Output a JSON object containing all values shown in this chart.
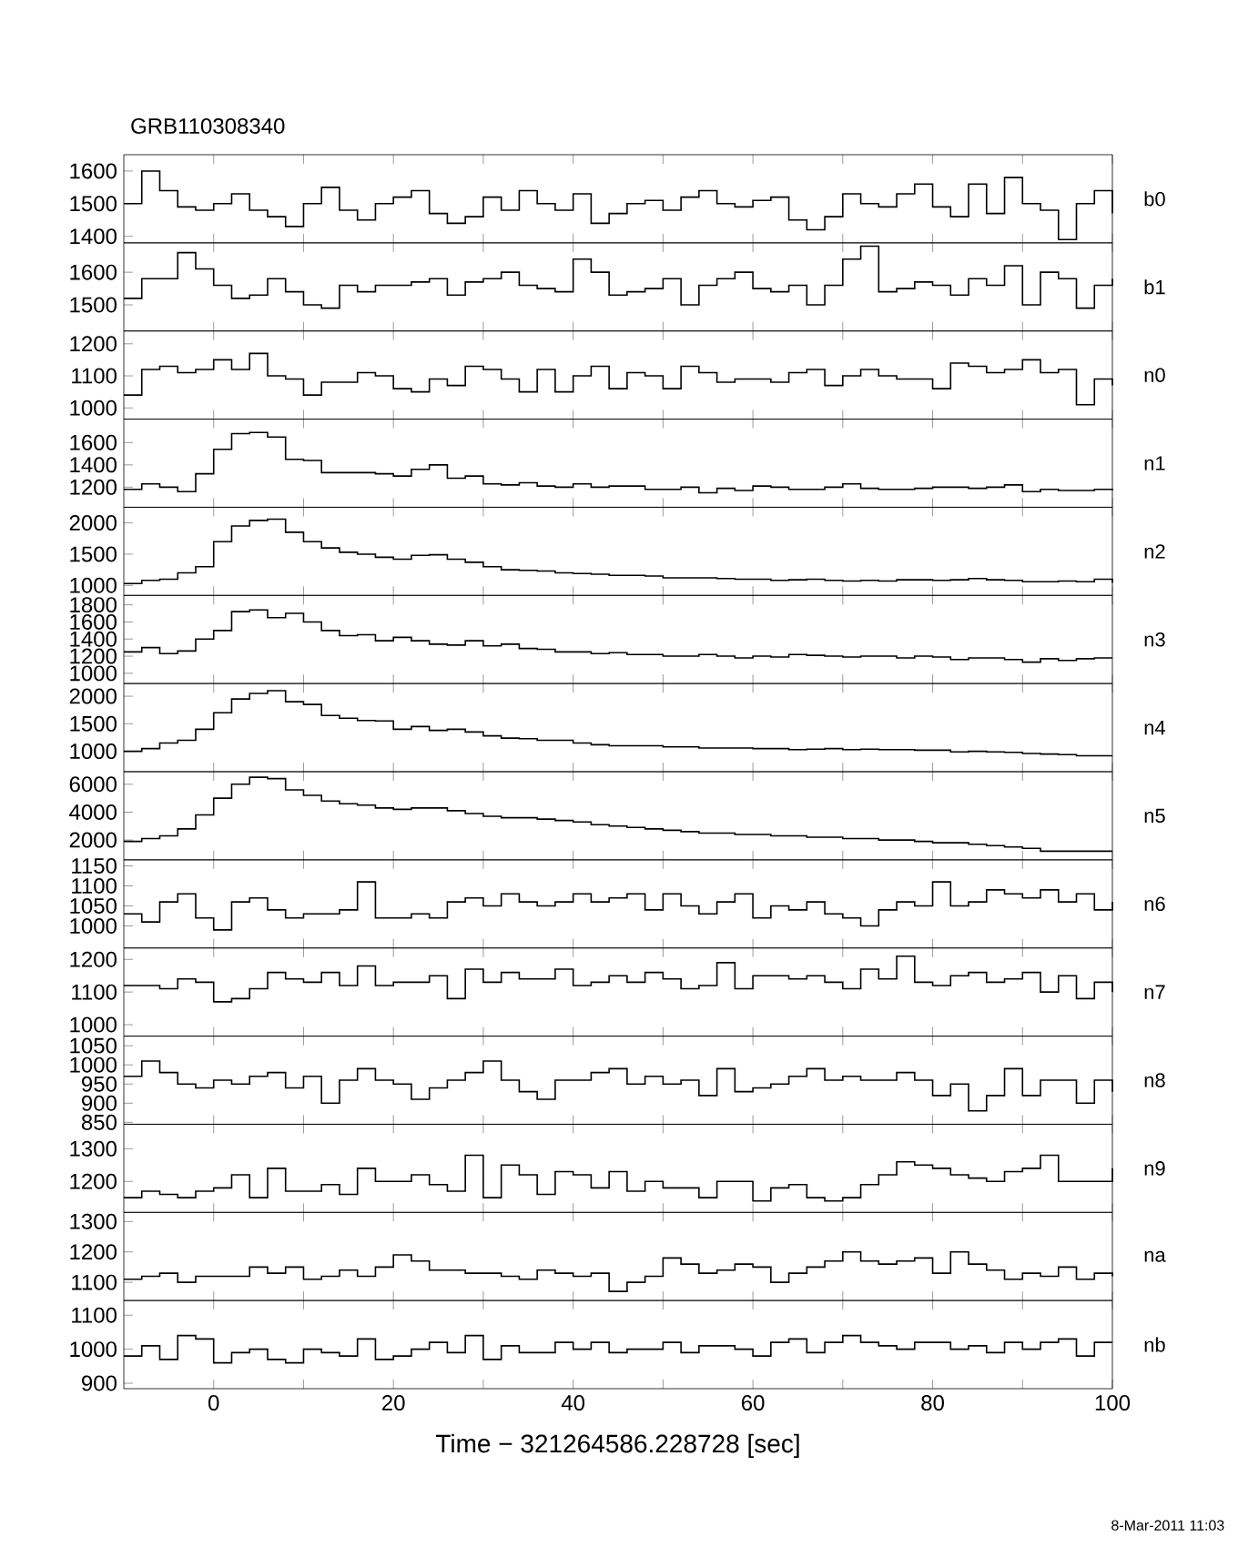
{
  "chart_data": [
    {
      "type": "step",
      "title": "GRB110308340",
      "annotations": [
        "b0"
      ],
      "color": "#000000",
      "xlim": [
        -10,
        100
      ],
      "xticks": [
        0,
        {
          "value": 10,
          "label": null
        },
        20,
        {
          "value": 30,
          "label": null
        },
        40,
        {
          "value": 50,
          "label": null
        },
        60,
        {
          "value": 70,
          "label": null
        },
        80,
        {
          "value": 90,
          "label": null
        },
        100
      ],
      "tick_labels": "y",
      "ylim": [
        1380,
        1650
      ],
      "yticks": [
        1400,
        1500,
        1600
      ],
      "x": [
        -10,
        -8,
        -6,
        -4,
        -2,
        0,
        2,
        4,
        6,
        8,
        10,
        12,
        14,
        16,
        18,
        20,
        22,
        24,
        26,
        28,
        30,
        32,
        34,
        36,
        38,
        40,
        42,
        44,
        46,
        48,
        50,
        52,
        54,
        56,
        58,
        60,
        62,
        64,
        66,
        68,
        70,
        72,
        74,
        76,
        78,
        80,
        82,
        84,
        86,
        88,
        90,
        92,
        94,
        96,
        98,
        100
      ],
      "values": [
        1500,
        1600,
        1540,
        1490,
        1480,
        1500,
        1530,
        1480,
        1460,
        1430,
        1500,
        1550,
        1480,
        1450,
        1500,
        1520,
        1540,
        1470,
        1440,
        1460,
        1520,
        1480,
        1540,
        1500,
        1480,
        1530,
        1440,
        1470,
        1500,
        1510,
        1480,
        1520,
        1540,
        1500,
        1490,
        1510,
        1520,
        1450,
        1420,
        1460,
        1530,
        1500,
        1490,
        1530,
        1560,
        1490,
        1460,
        1560,
        1470,
        1580,
        1500,
        1480,
        1390,
        1500,
        1540,
        1470
      ]
    },
    {
      "type": "step",
      "annotations": [
        "b1"
      ],
      "color": "#000000",
      "xlim": [
        -10,
        100
      ],
      "xticks": [
        0,
        {
          "value": 10,
          "label": null
        },
        20,
        {
          "value": 30,
          "label": null
        },
        40,
        {
          "value": 50,
          "label": null
        },
        60,
        {
          "value": 70,
          "label": null
        },
        80,
        {
          "value": 90,
          "label": null
        },
        100
      ],
      "tick_labels": "y",
      "ylim": [
        1420,
        1690
      ],
      "yticks": [
        1500,
        1600
      ],
      "x": [
        -10,
        -8,
        -6,
        -4,
        -2,
        0,
        2,
        4,
        6,
        8,
        10,
        12,
        14,
        16,
        18,
        20,
        22,
        24,
        26,
        28,
        30,
        32,
        34,
        36,
        38,
        40,
        42,
        44,
        46,
        48,
        50,
        52,
        54,
        56,
        58,
        60,
        62,
        64,
        66,
        68,
        70,
        72,
        74,
        76,
        78,
        80,
        82,
        84,
        86,
        88,
        90,
        92,
        94,
        96,
        98,
        100
      ],
      "values": [
        1520,
        1580,
        1580,
        1660,
        1610,
        1560,
        1520,
        1530,
        1580,
        1540,
        1500,
        1490,
        1560,
        1540,
        1560,
        1560,
        1570,
        1580,
        1530,
        1570,
        1580,
        1600,
        1560,
        1550,
        1540,
        1640,
        1600,
        1530,
        1540,
        1550,
        1580,
        1500,
        1560,
        1580,
        1600,
        1550,
        1540,
        1560,
        1500,
        1560,
        1640,
        1680,
        1540,
        1550,
        1570,
        1560,
        1530,
        1580,
        1560,
        1620,
        1500,
        1600,
        1580,
        1490,
        1560,
        1580
      ]
    },
    {
      "type": "step",
      "annotations": [
        "n0"
      ],
      "color": "#000000",
      "xlim": [
        -10,
        100
      ],
      "xticks": [
        0,
        {
          "value": 10,
          "label": null
        },
        20,
        {
          "value": 30,
          "label": null
        },
        40,
        {
          "value": 50,
          "label": null
        },
        60,
        {
          "value": 70,
          "label": null
        },
        80,
        {
          "value": 90,
          "label": null
        },
        100
      ],
      "tick_labels": "y",
      "ylim": [
        965,
        1240
      ],
      "yticks": [
        1000,
        1100,
        1200
      ],
      "x": [
        -10,
        -8,
        -6,
        -4,
        -2,
        0,
        2,
        4,
        6,
        8,
        10,
        12,
        14,
        16,
        18,
        20,
        22,
        24,
        26,
        28,
        30,
        32,
        34,
        36,
        38,
        40,
        42,
        44,
        46,
        48,
        50,
        52,
        54,
        56,
        58,
        60,
        62,
        64,
        66,
        68,
        70,
        72,
        74,
        76,
        78,
        80,
        82,
        84,
        86,
        88,
        90,
        92,
        94,
        96,
        98,
        100
      ],
      "values": [
        1040,
        1120,
        1130,
        1110,
        1120,
        1150,
        1120,
        1170,
        1100,
        1090,
        1040,
        1080,
        1080,
        1110,
        1100,
        1060,
        1050,
        1090,
        1070,
        1130,
        1120,
        1090,
        1050,
        1120,
        1050,
        1100,
        1130,
        1060,
        1110,
        1100,
        1060,
        1130,
        1110,
        1080,
        1090,
        1090,
        1080,
        1110,
        1120,
        1070,
        1100,
        1120,
        1100,
        1090,
        1090,
        1060,
        1140,
        1130,
        1110,
        1120,
        1150,
        1110,
        1120,
        1010,
        1090,
        1070
      ]
    },
    {
      "type": "step",
      "annotations": [
        "n1"
      ],
      "color": "#000000",
      "xlim": [
        -10,
        100
      ],
      "xticks": [
        0,
        {
          "value": 10,
          "label": null
        },
        20,
        {
          "value": 30,
          "label": null
        },
        40,
        {
          "value": 50,
          "label": null
        },
        60,
        {
          "value": 70,
          "label": null
        },
        80,
        {
          "value": 90,
          "label": null
        },
        100
      ],
      "tick_labels": "y",
      "ylim": [
        1020,
        1810
      ],
      "yticks": [
        1200,
        1400,
        1600
      ],
      "x": [
        -10,
        -8,
        -6,
        -4,
        -2,
        0,
        2,
        4,
        6,
        8,
        10,
        12,
        14,
        16,
        18,
        20,
        22,
        24,
        26,
        28,
        30,
        32,
        34,
        36,
        38,
        40,
        42,
        44,
        46,
        48,
        50,
        52,
        54,
        56,
        58,
        60,
        62,
        64,
        66,
        68,
        70,
        72,
        74,
        76,
        78,
        80,
        82,
        84,
        86,
        88,
        90,
        92,
        94,
        96,
        98,
        100
      ],
      "values": [
        1180,
        1230,
        1200,
        1160,
        1320,
        1540,
        1680,
        1690,
        1650,
        1450,
        1440,
        1330,
        1330,
        1330,
        1320,
        1300,
        1360,
        1400,
        1280,
        1300,
        1230,
        1220,
        1240,
        1210,
        1200,
        1230,
        1200,
        1210,
        1210,
        1180,
        1180,
        1200,
        1150,
        1190,
        1170,
        1210,
        1200,
        1180,
        1180,
        1200,
        1230,
        1190,
        1180,
        1180,
        1190,
        1200,
        1200,
        1190,
        1200,
        1220,
        1160,
        1180,
        1170,
        1170,
        1180,
        1170
      ]
    },
    {
      "type": "step",
      "annotations": [
        "n2"
      ],
      "color": "#000000",
      "xlim": [
        -10,
        100
      ],
      "xticks": [
        0,
        {
          "value": 10,
          "label": null
        },
        20,
        {
          "value": 30,
          "label": null
        },
        40,
        {
          "value": 50,
          "label": null
        },
        60,
        {
          "value": 70,
          "label": null
        },
        80,
        {
          "value": 90,
          "label": null
        },
        100
      ],
      "tick_labels": "y",
      "ylim": [
        840,
        2250
      ],
      "yticks": [
        1000,
        1500,
        2000
      ],
      "x": [
        -10,
        -8,
        -6,
        -4,
        -2,
        0,
        2,
        4,
        6,
        8,
        10,
        12,
        14,
        16,
        18,
        20,
        22,
        24,
        26,
        28,
        30,
        32,
        34,
        36,
        38,
        40,
        42,
        44,
        46,
        48,
        50,
        52,
        54,
        56,
        58,
        60,
        62,
        64,
        66,
        68,
        70,
        72,
        74,
        76,
        78,
        80,
        82,
        84,
        86,
        88,
        90,
        92,
        94,
        96,
        98,
        100
      ],
      "values": [
        1030,
        1080,
        1100,
        1200,
        1300,
        1700,
        1950,
        2040,
        2060,
        1850,
        1700,
        1600,
        1530,
        1500,
        1450,
        1420,
        1480,
        1490,
        1420,
        1370,
        1300,
        1250,
        1240,
        1230,
        1200,
        1190,
        1180,
        1160,
        1160,
        1150,
        1120,
        1120,
        1120,
        1110,
        1100,
        1100,
        1080,
        1090,
        1100,
        1080,
        1070,
        1080,
        1070,
        1090,
        1090,
        1080,
        1090,
        1110,
        1090,
        1080,
        1060,
        1060,
        1070,
        1060,
        1100,
        1040
      ]
    },
    {
      "type": "step",
      "annotations": [
        "n3"
      ],
      "color": "#000000",
      "xlim": [
        -10,
        100
      ],
      "xticks": [
        0,
        {
          "value": 10,
          "label": null
        },
        20,
        {
          "value": 30,
          "label": null
        },
        40,
        {
          "value": 50,
          "label": null
        },
        60,
        {
          "value": 70,
          "label": null
        },
        80,
        {
          "value": 90,
          "label": null
        },
        100
      ],
      "tick_labels": "y",
      "ylim": [
        880,
        1910
      ],
      "yticks": [
        1000,
        1200,
        1400,
        1600,
        1800
      ],
      "x": [
        -10,
        -8,
        -6,
        -4,
        -2,
        0,
        2,
        4,
        6,
        8,
        10,
        12,
        14,
        16,
        18,
        20,
        22,
        24,
        26,
        28,
        30,
        32,
        34,
        36,
        38,
        40,
        42,
        44,
        46,
        48,
        50,
        52,
        54,
        56,
        58,
        60,
        62,
        64,
        66,
        68,
        70,
        72,
        74,
        76,
        78,
        80,
        82,
        84,
        86,
        88,
        90,
        92,
        94,
        96,
        98,
        100
      ],
      "values": [
        1250,
        1300,
        1230,
        1260,
        1400,
        1500,
        1720,
        1740,
        1650,
        1700,
        1600,
        1500,
        1440,
        1450,
        1380,
        1420,
        1380,
        1340,
        1330,
        1380,
        1320,
        1340,
        1290,
        1280,
        1250,
        1250,
        1230,
        1240,
        1220,
        1220,
        1200,
        1200,
        1220,
        1200,
        1180,
        1200,
        1190,
        1220,
        1210,
        1200,
        1190,
        1200,
        1200,
        1180,
        1200,
        1190,
        1160,
        1180,
        1180,
        1160,
        1130,
        1170,
        1150,
        1170,
        1180,
        1180
      ]
    },
    {
      "type": "step",
      "annotations": [
        "n4"
      ],
      "color": "#000000",
      "xlim": [
        -10,
        100
      ],
      "xticks": [
        0,
        {
          "value": 10,
          "label": null
        },
        20,
        {
          "value": 30,
          "label": null
        },
        40,
        {
          "value": 50,
          "label": null
        },
        60,
        {
          "value": 70,
          "label": null
        },
        80,
        {
          "value": 90,
          "label": null
        },
        100
      ],
      "tick_labels": "y",
      "ylim": [
        630,
        2230
      ],
      "yticks": [
        1000,
        1500,
        2000
      ],
      "x": [
        -10,
        -8,
        -6,
        -4,
        -2,
        0,
        2,
        4,
        6,
        8,
        10,
        12,
        14,
        16,
        18,
        20,
        22,
        24,
        26,
        28,
        30,
        32,
        34,
        36,
        38,
        40,
        42,
        44,
        46,
        48,
        50,
        52,
        54,
        56,
        58,
        60,
        62,
        64,
        66,
        68,
        70,
        72,
        74,
        76,
        78,
        80,
        82,
        84,
        86,
        88,
        90,
        92,
        94,
        96,
        98,
        100
      ],
      "values": [
        1000,
        1050,
        1150,
        1200,
        1400,
        1700,
        1950,
        2050,
        2100,
        1900,
        1850,
        1650,
        1600,
        1560,
        1550,
        1400,
        1450,
        1380,
        1400,
        1350,
        1280,
        1240,
        1230,
        1200,
        1200,
        1150,
        1120,
        1100,
        1100,
        1100,
        1080,
        1080,
        1060,
        1060,
        1060,
        1050,
        1050,
        1030,
        1040,
        1050,
        1030,
        1040,
        1030,
        1030,
        1020,
        1020,
        990,
        1000,
        990,
        980,
        960,
        950,
        940,
        920,
        920,
        920
      ]
    },
    {
      "type": "step",
      "annotations": [
        "n5"
      ],
      "color": "#000000",
      "xlim": [
        -10,
        100
      ],
      "xticks": [
        0,
        {
          "value": 10,
          "label": null
        },
        20,
        {
          "value": 30,
          "label": null
        },
        40,
        {
          "value": 50,
          "label": null
        },
        60,
        {
          "value": 70,
          "label": null
        },
        80,
        {
          "value": 90,
          "label": null
        },
        100
      ],
      "tick_labels": "y",
      "ylim": [
        580,
        6900
      ],
      "yticks": [
        2000,
        4000,
        6000
      ],
      "x": [
        -10,
        -8,
        -6,
        -4,
        -2,
        0,
        2,
        4,
        6,
        8,
        10,
        12,
        14,
        16,
        18,
        20,
        22,
        24,
        26,
        28,
        30,
        32,
        34,
        36,
        38,
        40,
        42,
        44,
        46,
        48,
        50,
        52,
        54,
        56,
        58,
        60,
        62,
        64,
        66,
        68,
        70,
        72,
        74,
        76,
        78,
        80,
        82,
        84,
        86,
        88,
        90,
        92,
        94,
        96,
        98,
        100
      ],
      "values": [
        1900,
        2100,
        2300,
        2800,
        3800,
        5000,
        6000,
        6500,
        6400,
        5600,
        5200,
        4800,
        4600,
        4500,
        4300,
        4200,
        4300,
        4300,
        4100,
        3900,
        3700,
        3600,
        3600,
        3500,
        3400,
        3300,
        3100,
        3000,
        2900,
        2800,
        2700,
        2600,
        2500,
        2500,
        2400,
        2400,
        2300,
        2300,
        2200,
        2200,
        2100,
        2100,
        2000,
        2000,
        1900,
        1800,
        1800,
        1700,
        1600,
        1500,
        1400,
        1200,
        1200,
        1200,
        1200,
        1200
      ]
    },
    {
      "type": "step",
      "annotations": [
        "n6"
      ],
      "color": "#000000",
      "xlim": [
        -10,
        100
      ],
      "xticks": [
        0,
        {
          "value": 10,
          "label": null
        },
        20,
        {
          "value": 30,
          "label": null
        },
        40,
        {
          "value": 50,
          "label": null
        },
        60,
        {
          "value": 70,
          "label": null
        },
        80,
        {
          "value": 90,
          "label": null
        },
        100
      ],
      "tick_labels": "y",
      "ylim": [
        945,
        1165
      ],
      "yticks": [
        1000,
        1050,
        1100,
        1150
      ],
      "x": [
        -10,
        -8,
        -6,
        -4,
        -2,
        0,
        2,
        4,
        6,
        8,
        10,
        12,
        14,
        16,
        18,
        20,
        22,
        24,
        26,
        28,
        30,
        32,
        34,
        36,
        38,
        40,
        42,
        44,
        46,
        48,
        50,
        52,
        54,
        56,
        58,
        60,
        62,
        64,
        66,
        68,
        70,
        72,
        74,
        76,
        78,
        80,
        82,
        84,
        86,
        88,
        90,
        92,
        94,
        96,
        98,
        100
      ],
      "values": [
        1030,
        1010,
        1060,
        1080,
        1020,
        990,
        1060,
        1070,
        1040,
        1020,
        1030,
        1030,
        1040,
        1110,
        1020,
        1020,
        1030,
        1020,
        1060,
        1070,
        1050,
        1080,
        1060,
        1050,
        1060,
        1080,
        1060,
        1070,
        1080,
        1040,
        1080,
        1050,
        1030,
        1060,
        1080,
        1020,
        1050,
        1040,
        1060,
        1030,
        1020,
        1000,
        1040,
        1060,
        1050,
        1110,
        1050,
        1060,
        1090,
        1080,
        1070,
        1090,
        1060,
        1080,
        1040,
        1060
      ]
    },
    {
      "type": "step",
      "annotations": [
        "n7"
      ],
      "color": "#000000",
      "xlim": [
        -10,
        100
      ],
      "xticks": [
        0,
        {
          "value": 10,
          "label": null
        },
        20,
        {
          "value": 30,
          "label": null
        },
        40,
        {
          "value": 50,
          "label": null
        },
        60,
        {
          "value": 70,
          "label": null
        },
        80,
        {
          "value": 90,
          "label": null
        },
        100
      ],
      "tick_labels": "y",
      "ylim": [
        965,
        1235
      ],
      "yticks": [
        1000,
        1100,
        1200
      ],
      "x": [
        -10,
        -8,
        -6,
        -4,
        -2,
        0,
        2,
        4,
        6,
        8,
        10,
        12,
        14,
        16,
        18,
        20,
        22,
        24,
        26,
        28,
        30,
        32,
        34,
        36,
        38,
        40,
        42,
        44,
        46,
        48,
        50,
        52,
        54,
        56,
        58,
        60,
        62,
        64,
        66,
        68,
        70,
        72,
        74,
        76,
        78,
        80,
        82,
        84,
        86,
        88,
        90,
        92,
        94,
        96,
        98,
        100
      ],
      "values": [
        1120,
        1120,
        1110,
        1140,
        1130,
        1070,
        1080,
        1110,
        1160,
        1140,
        1130,
        1160,
        1120,
        1180,
        1120,
        1130,
        1130,
        1150,
        1080,
        1170,
        1130,
        1160,
        1140,
        1140,
        1170,
        1120,
        1130,
        1150,
        1130,
        1160,
        1140,
        1110,
        1120,
        1190,
        1110,
        1150,
        1150,
        1140,
        1150,
        1130,
        1110,
        1170,
        1140,
        1210,
        1130,
        1120,
        1150,
        1160,
        1130,
        1140,
        1160,
        1100,
        1150,
        1080,
        1130,
        1100
      ]
    },
    {
      "type": "step",
      "annotations": [
        "n8"
      ],
      "color": "#000000",
      "xlim": [
        -10,
        100
      ],
      "xticks": [
        0,
        {
          "value": 10,
          "label": null
        },
        20,
        {
          "value": 30,
          "label": null
        },
        40,
        {
          "value": 50,
          "label": null
        },
        60,
        {
          "value": 70,
          "label": null
        },
        80,
        {
          "value": 90,
          "label": null
        },
        100
      ],
      "tick_labels": "y",
      "ylim": [
        845,
        1075
      ],
      "yticks": [
        850,
        900,
        950,
        1000,
        1050
      ],
      "x": [
        -10,
        -8,
        -6,
        -4,
        -2,
        0,
        2,
        4,
        6,
        8,
        10,
        12,
        14,
        16,
        18,
        20,
        22,
        24,
        26,
        28,
        30,
        32,
        34,
        36,
        38,
        40,
        42,
        44,
        46,
        48,
        50,
        52,
        54,
        56,
        58,
        60,
        62,
        64,
        66,
        68,
        70,
        72,
        74,
        76,
        78,
        80,
        82,
        84,
        86,
        88,
        90,
        92,
        94,
        96,
        98,
        100
      ],
      "values": [
        970,
        1010,
        980,
        950,
        940,
        960,
        950,
        970,
        980,
        940,
        970,
        900,
        960,
        990,
        960,
        950,
        910,
        940,
        960,
        980,
        1010,
        960,
        930,
        910,
        960,
        960,
        980,
        990,
        950,
        970,
        950,
        960,
        920,
        990,
        930,
        940,
        950,
        970,
        990,
        960,
        970,
        960,
        960,
        980,
        960,
        920,
        950,
        880,
        920,
        990,
        920,
        960,
        960,
        900,
        960,
        930
      ]
    },
    {
      "type": "step",
      "annotations": [
        "n9"
      ],
      "color": "#000000",
      "xlim": [
        -10,
        100
      ],
      "xticks": [
        0,
        {
          "value": 10,
          "label": null
        },
        20,
        {
          "value": 30,
          "label": null
        },
        40,
        {
          "value": 50,
          "label": null
        },
        60,
        {
          "value": 70,
          "label": null
        },
        80,
        {
          "value": 90,
          "label": null
        },
        100
      ],
      "tick_labels": "y",
      "ylim": [
        1105,
        1375
      ],
      "yticks": [
        1200,
        1300
      ],
      "x": [
        -10,
        -8,
        -6,
        -4,
        -2,
        0,
        2,
        4,
        6,
        8,
        10,
        12,
        14,
        16,
        18,
        20,
        22,
        24,
        26,
        28,
        30,
        32,
        34,
        36,
        38,
        40,
        42,
        44,
        46,
        48,
        50,
        52,
        54,
        56,
        58,
        60,
        62,
        64,
        66,
        68,
        70,
        72,
        74,
        76,
        78,
        80,
        82,
        84,
        86,
        88,
        90,
        92,
        94,
        96,
        98,
        100
      ],
      "values": [
        1150,
        1170,
        1160,
        1150,
        1170,
        1180,
        1220,
        1150,
        1240,
        1170,
        1170,
        1190,
        1160,
        1240,
        1200,
        1200,
        1220,
        1190,
        1170,
        1280,
        1150,
        1250,
        1220,
        1160,
        1230,
        1220,
        1180,
        1230,
        1170,
        1200,
        1180,
        1180,
        1150,
        1200,
        1200,
        1140,
        1180,
        1190,
        1150,
        1140,
        1150,
        1190,
        1220,
        1260,
        1250,
        1240,
        1220,
        1210,
        1200,
        1230,
        1240,
        1280,
        1200,
        1200,
        1200,
        1240
      ]
    },
    {
      "type": "step",
      "annotations": [
        "na"
      ],
      "color": "#000000",
      "xlim": [
        -10,
        100
      ],
      "xticks": [
        0,
        {
          "value": 10,
          "label": null
        },
        20,
        {
          "value": 30,
          "label": null
        },
        40,
        {
          "value": 50,
          "label": null
        },
        60,
        {
          "value": 70,
          "label": null
        },
        80,
        {
          "value": 90,
          "label": null
        },
        100
      ],
      "tick_labels": "y",
      "ylim": [
        1040,
        1330
      ],
      "yticks": [
        1100,
        1200,
        1300
      ],
      "x": [
        -10,
        -8,
        -6,
        -4,
        -2,
        0,
        2,
        4,
        6,
        8,
        10,
        12,
        14,
        16,
        18,
        20,
        22,
        24,
        26,
        28,
        30,
        32,
        34,
        36,
        38,
        40,
        42,
        44,
        46,
        48,
        50,
        52,
        54,
        56,
        58,
        60,
        62,
        64,
        66,
        68,
        70,
        72,
        74,
        76,
        78,
        80,
        82,
        84,
        86,
        88,
        90,
        92,
        94,
        96,
        98,
        100
      ],
      "values": [
        1110,
        1120,
        1130,
        1100,
        1120,
        1120,
        1120,
        1150,
        1130,
        1150,
        1110,
        1120,
        1140,
        1120,
        1150,
        1190,
        1170,
        1140,
        1140,
        1130,
        1130,
        1120,
        1110,
        1140,
        1130,
        1120,
        1130,
        1070,
        1100,
        1120,
        1180,
        1160,
        1130,
        1140,
        1160,
        1150,
        1100,
        1130,
        1150,
        1170,
        1200,
        1170,
        1160,
        1170,
        1180,
        1130,
        1200,
        1160,
        1140,
        1110,
        1130,
        1120,
        1150,
        1110,
        1130,
        1120
      ]
    },
    {
      "type": "step",
      "annotations": [
        "nb",
        "8-Mar-2011 11:03"
      ],
      "xlabel": "Time − 321264586.228728 [sec]",
      "color": "#000000",
      "xlim": [
        -10,
        100
      ],
      "xticks": [
        0,
        {
          "value": 10,
          "label": null
        },
        20,
        {
          "value": 30,
          "label": null
        },
        40,
        {
          "value": 50,
          "label": null
        },
        60,
        {
          "value": 70,
          "label": null
        },
        80,
        {
          "value": 90,
          "label": null
        },
        100
      ],
      "ylim": [
        884,
        1143
      ],
      "yticks": [
        900,
        1000,
        1100
      ],
      "x": [
        -10,
        -8,
        -6,
        -4,
        -2,
        0,
        2,
        4,
        6,
        8,
        10,
        12,
        14,
        16,
        18,
        20,
        22,
        24,
        26,
        28,
        30,
        32,
        34,
        36,
        38,
        40,
        42,
        44,
        46,
        48,
        50,
        52,
        54,
        56,
        58,
        60,
        62,
        64,
        66,
        68,
        70,
        72,
        74,
        76,
        78,
        80,
        82,
        84,
        86,
        88,
        90,
        92,
        94,
        96,
        98,
        100
      ],
      "values": [
        980,
        1010,
        970,
        1040,
        1030,
        960,
        990,
        1000,
        970,
        960,
        1000,
        990,
        980,
        1030,
        970,
        980,
        1000,
        1020,
        990,
        1040,
        970,
        1010,
        990,
        990,
        1020,
        1000,
        1020,
        990,
        1000,
        1000,
        1020,
        990,
        1010,
        1010,
        1000,
        980,
        1020,
        1030,
        990,
        1020,
        1040,
        1020,
        1010,
        1000,
        1020,
        1020,
        1000,
        1010,
        990,
        1020,
        1000,
        1020,
        1030,
        980,
        1020,
        1020
      ]
    }
  ]
}
